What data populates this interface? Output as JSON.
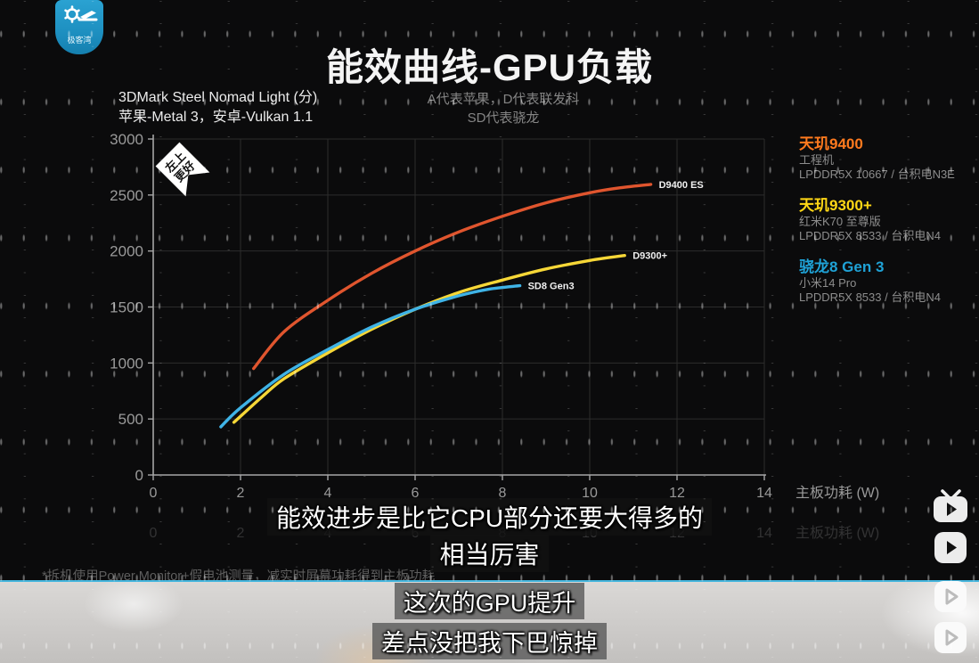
{
  "logo": {
    "name": "极客湾"
  },
  "title": "能效曲线-GPU负载",
  "axis_title": {
    "line1": "3DMark Steel Nomad Light (分)",
    "line2": "苹果-Metal 3，安卓-Vulkan 1.1"
  },
  "center_note": {
    "line1": "A代表苹果，D代表联发科",
    "line2": "SD代表骁龙"
  },
  "chart_data": {
    "type": "line",
    "title": "能效曲线-GPU负载",
    "ylabel": "3DMark Steel Nomad Light (分)",
    "xlabel": "主板功耗 (W)",
    "xlim": [
      0,
      14
    ],
    "ylim": [
      0,
      3000
    ],
    "x_ticks": [
      0,
      2,
      4,
      6,
      8,
      10,
      12,
      14
    ],
    "y_ticks": [
      0,
      500,
      1000,
      1500,
      2000,
      2500,
      3000
    ],
    "grid": "on",
    "legend_position": "right",
    "annotation": "左上更好",
    "annotation_lines": [
      "左上",
      "更好"
    ],
    "series": [
      {
        "name": "D9400 ES",
        "color": "#e0552e",
        "points": [
          [
            2.3,
            950
          ],
          [
            3,
            1280
          ],
          [
            4,
            1560
          ],
          [
            5,
            1800
          ],
          [
            6,
            2000
          ],
          [
            7,
            2170
          ],
          [
            8,
            2310
          ],
          [
            9,
            2430
          ],
          [
            10,
            2520
          ],
          [
            10.7,
            2565
          ],
          [
            11.4,
            2595
          ]
        ]
      },
      {
        "name": "D9300+",
        "color": "#f6d737",
        "points": [
          [
            1.85,
            470
          ],
          [
            2.5,
            700
          ],
          [
            3,
            860
          ],
          [
            4,
            1090
          ],
          [
            5,
            1300
          ],
          [
            6,
            1480
          ],
          [
            7,
            1630
          ],
          [
            8,
            1740
          ],
          [
            9,
            1840
          ],
          [
            10,
            1915
          ],
          [
            10.8,
            1960
          ]
        ]
      },
      {
        "name": "SD8 Gen3",
        "color": "#3fb3e6",
        "points": [
          [
            1.55,
            430
          ],
          [
            2,
            600
          ],
          [
            3,
            900
          ],
          [
            4,
            1120
          ],
          [
            5,
            1320
          ],
          [
            6,
            1480
          ],
          [
            7,
            1600
          ],
          [
            7.7,
            1660
          ],
          [
            8.4,
            1690
          ]
        ]
      }
    ]
  },
  "legend": [
    {
      "name": "天玑9400",
      "color": "#ff7a1e",
      "line2": "工程机",
      "line3": "LPDDR5X 10667 / 台积电N3E"
    },
    {
      "name": "天玑9300+",
      "color": "#ffd715",
      "line2": "红米K70 至尊版",
      "line3": "LPDDR5X 8533 / 台积电N4"
    },
    {
      "name": "骁龙8 Gen 3",
      "color": "#1fa2d6",
      "line2": "小米14 Pro",
      "line3": "LPDDR5X 8533 / 台积电N4"
    }
  ],
  "ghost_axis": {
    "ticks": [
      0,
      2,
      4,
      6,
      8,
      10,
      12,
      14
    ],
    "label": "主板功耗 (W)"
  },
  "captions": {
    "top1": "能效进步是比它CPU部分还要大得多的",
    "top2": "相当厉害",
    "bottom1": "这次的GPU提升",
    "bottom2": "差点没把我下巴惊掉"
  },
  "footnote": "*拆机使用Power Monitor+假电池测量，减实时屏幕功耗得到主板功耗"
}
